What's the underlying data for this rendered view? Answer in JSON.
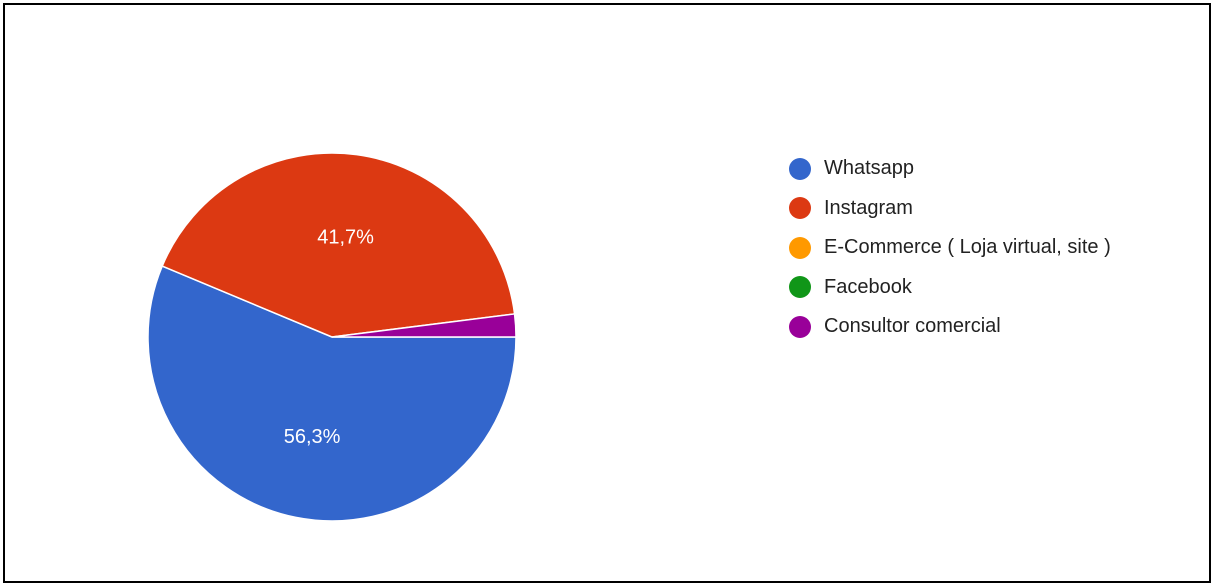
{
  "chart_data": {
    "type": "pie",
    "slices": [
      {
        "name": "Whatsapp",
        "value": 56.3,
        "label": "56,3%",
        "color": "#3366cc"
      },
      {
        "name": "Instagram",
        "value": 41.7,
        "label": "41,7%",
        "color": "#dc3912"
      },
      {
        "name": "E-Commerce ( Loja virtual, site )",
        "value": 0,
        "label": "",
        "color": "#ff9900"
      },
      {
        "name": "Facebook",
        "value": 0,
        "label": "",
        "color": "#109618"
      },
      {
        "name": "Consultor comercial",
        "value": 2.0,
        "label": "",
        "color": "#990099"
      }
    ],
    "legend_position": "right"
  }
}
